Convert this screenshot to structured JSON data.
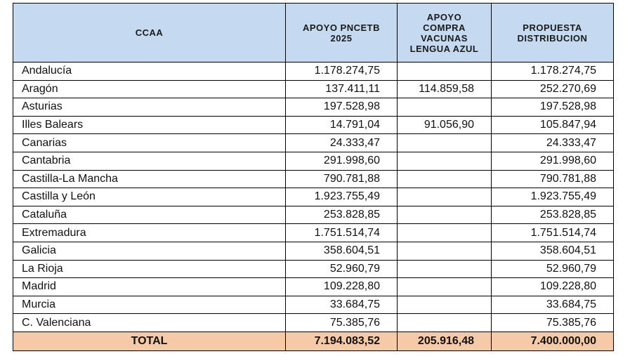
{
  "table": {
    "header": [
      "CCAA",
      "APOYO PNCETB\n2025",
      "APOYO\nCOMPRA\nVACUNAS\nLENGUA AZUL",
      "PROPUESTA\nDISTRIBUCION"
    ],
    "rows": [
      [
        "Andalucía",
        "1.178.274,75",
        null,
        "1.178.274,75"
      ],
      [
        "Aragón",
        "137.411,11",
        "114.859,58",
        "252.270,69"
      ],
      [
        "Asturias",
        "197.528,98",
        null,
        "197.528,98"
      ],
      [
        "Illes Balears",
        "14.791,04",
        "91.056,90",
        "105.847,94"
      ],
      [
        "Canarias",
        "24.333,47",
        null,
        "24.333,47"
      ],
      [
        "Cantabria",
        "291.998,60",
        null,
        "291.998,60"
      ],
      [
        "Castilla-La Mancha",
        "790.781,88",
        null,
        "790.781,88"
      ],
      [
        "Castilla y León",
        "1.923.755,49",
        null,
        "1.923.755,49"
      ],
      [
        "Cataluña",
        "253.828,85",
        null,
        "253.828,85"
      ],
      [
        "Extremadura",
        "1.751.514,74",
        null,
        "1.751.514,74"
      ],
      [
        "Galicia",
        "358.604,51",
        null,
        "358.604,51"
      ],
      [
        "La Rioja",
        "52.960,79",
        null,
        "52.960,79"
      ],
      [
        "Madrid",
        "109.228,80",
        null,
        "109.228,80"
      ],
      [
        "Murcia",
        "33.684,75",
        null,
        "33.684,75"
      ],
      [
        "C. Valenciana",
        "75.385,76",
        null,
        "75.385,76"
      ]
    ],
    "total": [
      "TOTAL",
      "7.194.083,52",
      "205.916,48",
      "7.400.000,00"
    ]
  }
}
